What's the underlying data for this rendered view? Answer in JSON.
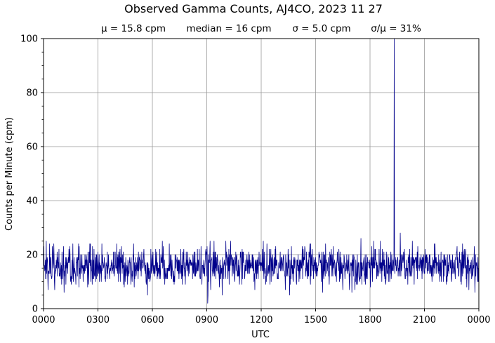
{
  "chart_data": {
    "type": "line",
    "title": "Observed Gamma Counts, AJ4CO, 2023 11 27",
    "subtitle_items": [
      "μ = 15.8 cpm",
      "median = 16 cpm",
      "σ = 5.0 cpm",
      "σ/μ = 31%"
    ],
    "xlabel": "UTC",
    "ylabel": "Counts per Minute (cpm)",
    "ylim": [
      0,
      100
    ],
    "yticks": [
      0,
      20,
      40,
      60,
      80,
      100
    ],
    "xlim": [
      0,
      1440
    ],
    "xticks": [
      {
        "minute": 0,
        "label": "0000"
      },
      {
        "minute": 180,
        "label": "0300"
      },
      {
        "minute": 360,
        "label": "0600"
      },
      {
        "minute": 540,
        "label": "0900"
      },
      {
        "minute": 720,
        "label": "1200"
      },
      {
        "minute": 900,
        "label": "1500"
      },
      {
        "minute": 1080,
        "label": "1800"
      },
      {
        "minute": 1260,
        "label": "2100"
      },
      {
        "minute": 1440,
        "label": "0000"
      }
    ],
    "grid": true,
    "series": [
      {
        "color": "#00008b",
        "x_unit": "minutes after 0000 UTC",
        "mean": 15.8,
        "std": 5.0,
        "min": 2,
        "max": 100,
        "spike": {
          "minute": 1160,
          "value": 100
        }
      }
    ]
  }
}
